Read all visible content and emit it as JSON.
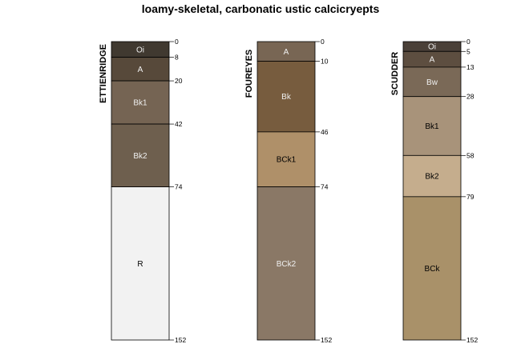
{
  "chart_data": {
    "type": "soil-profile",
    "title": "loamy-skeletal, carbonatic ustic calcicryepts",
    "max_depth": 152,
    "profiles": [
      {
        "name": "ETTIENRIDGE",
        "horizons": [
          {
            "name": "Oi",
            "top": 0,
            "bottom": 8,
            "color": "#403930",
            "text_color": "#f0f0f0"
          },
          {
            "name": "A",
            "top": 8,
            "bottom": 20,
            "color": "#57493a",
            "text_color": "#f0f0f0"
          },
          {
            "name": "Bk1",
            "top": 20,
            "bottom": 42,
            "color": "#756453",
            "text_color": "#f0f0f0"
          },
          {
            "name": "Bk2",
            "top": 42,
            "bottom": 74,
            "color": "#6e5f4e",
            "text_color": "#f0f0f0"
          },
          {
            "name": "R",
            "top": 74,
            "bottom": 152,
            "color": "#f2f2f2",
            "text_color": "#000000"
          }
        ],
        "depth_labels": [
          "0",
          "8",
          "20",
          "42",
          "74",
          "152"
        ]
      },
      {
        "name": "FOUREYES",
        "horizons": [
          {
            "name": "A",
            "top": 0,
            "bottom": 10,
            "color": "#786654",
            "text_color": "#f0f0f0"
          },
          {
            "name": "Bk",
            "top": 10,
            "bottom": 46,
            "color": "#775c3e",
            "text_color": "#f0f0f0"
          },
          {
            "name": "BCk1",
            "top": 46,
            "bottom": 74,
            "color": "#af9069",
            "text_color": "#000000"
          },
          {
            "name": "BCk2",
            "top": 74,
            "bottom": 152,
            "color": "#8a7866",
            "text_color": "#f0f0f0"
          }
        ],
        "depth_labels": [
          "0",
          "10",
          "46",
          "74",
          "152"
        ]
      },
      {
        "name": "SCUDDER",
        "horizons": [
          {
            "name": "Oi",
            "top": 0,
            "bottom": 5,
            "color": "#4a4038",
            "text_color": "#f0f0f0"
          },
          {
            "name": "A",
            "top": 5,
            "bottom": 13,
            "color": "#5d4e40",
            "text_color": "#f0f0f0"
          },
          {
            "name": "Bw",
            "top": 13,
            "bottom": 28,
            "color": "#7a6957",
            "text_color": "#f0f0f0"
          },
          {
            "name": "Bk1",
            "top": 28,
            "bottom": 58,
            "color": "#a8937a",
            "text_color": "#000000"
          },
          {
            "name": "Bk2",
            "top": 58,
            "bottom": 79,
            "color": "#c5ad8d",
            "text_color": "#000000"
          },
          {
            "name": "BCk",
            "top": 79,
            "bottom": 152,
            "color": "#a99169",
            "text_color": "#000000"
          }
        ],
        "depth_labels": [
          "0",
          "5",
          "13",
          "28",
          "58",
          "79",
          "152"
        ]
      }
    ]
  }
}
